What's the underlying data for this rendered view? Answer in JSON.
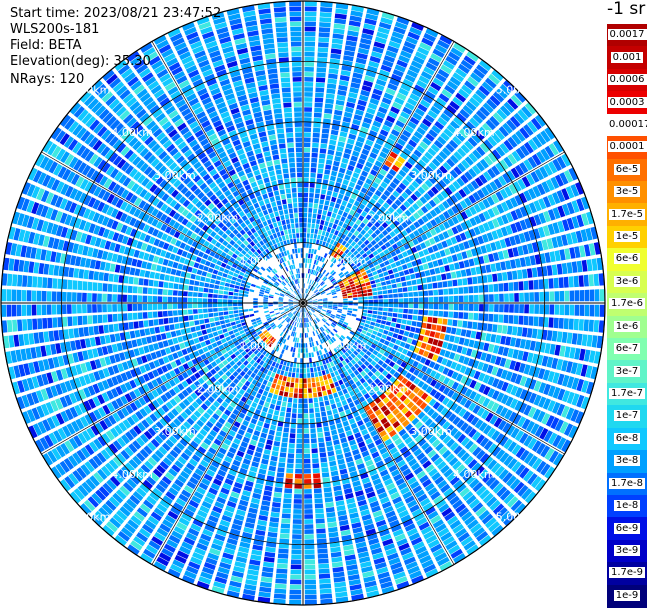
{
  "info": {
    "start_time": "Start time: 2023/08/21 23:47:52",
    "instrument": "WLS200s-181",
    "field": "Field: BETA",
    "elevation": "Elevation(deg): 35.30",
    "nrays": "NRays: 120"
  },
  "colorbar": {
    "title": "-1 sr",
    "labels": [
      "0.0017",
      "0.001",
      "0.0006",
      "0.0003",
      "0.00017",
      "0.0001",
      "6e-5",
      "3e-5",
      "1.7e-5",
      "1e-5",
      "6e-6",
      "3e-6",
      "1.7e-6",
      "1e-6",
      "6e-7",
      "3e-7",
      "1.7e-7",
      "1e-7",
      "6e-8",
      "3e-8",
      "1.7e-8",
      "1e-8",
      "6e-9",
      "3e-9",
      "1.7e-9",
      "1e-9"
    ]
  },
  "chart_data": {
    "type": "heatmap",
    "projection": "polar",
    "n_rays": 120,
    "range_rings_km": [
      1,
      2,
      3,
      4,
      5
    ],
    "ring_labels": [
      "1.00km",
      "2.00km",
      "3.00km",
      "4.00km",
      "5.00km"
    ],
    "max_range_km": 5,
    "field": "BETA",
    "colormap_hex": [
      "#00007a",
      "#0000b4",
      "#0010e6",
      "#0040ff",
      "#0070ff",
      "#00a0ff",
      "#10c8ff",
      "#40e8e0",
      "#80ffb0",
      "#c0ff70",
      "#f0ff30",
      "#ffd000",
      "#ff9000",
      "#ff5000",
      "#e81000",
      "#b00000"
    ],
    "strong_return_sectors": [
      {
        "azimuth_deg": [
          30,
          36
        ],
        "range_km": [
          2.6,
          2.9
        ]
      },
      {
        "azimuth_deg": [
          60,
          85
        ],
        "range_km": [
          0.6,
          1.1
        ]
      },
      {
        "azimuth_deg": [
          95,
          115
        ],
        "range_km": [
          2.0,
          2.4
        ]
      },
      {
        "azimuth_deg": [
          125,
          150
        ],
        "range_km": [
          2.0,
          2.6
        ]
      },
      {
        "azimuth_deg": [
          160,
          200
        ],
        "range_km": [
          1.2,
          1.5
        ]
      },
      {
        "azimuth_deg": [
          175,
          185
        ],
        "range_km": [
          2.8,
          3.0
        ]
      },
      {
        "azimuth_deg": [
          215,
          235
        ],
        "range_km": [
          0.7,
          0.9
        ]
      },
      {
        "azimuth_deg": [
          30,
          40
        ],
        "range_km": [
          0.9,
          1.1
        ]
      }
    ]
  }
}
